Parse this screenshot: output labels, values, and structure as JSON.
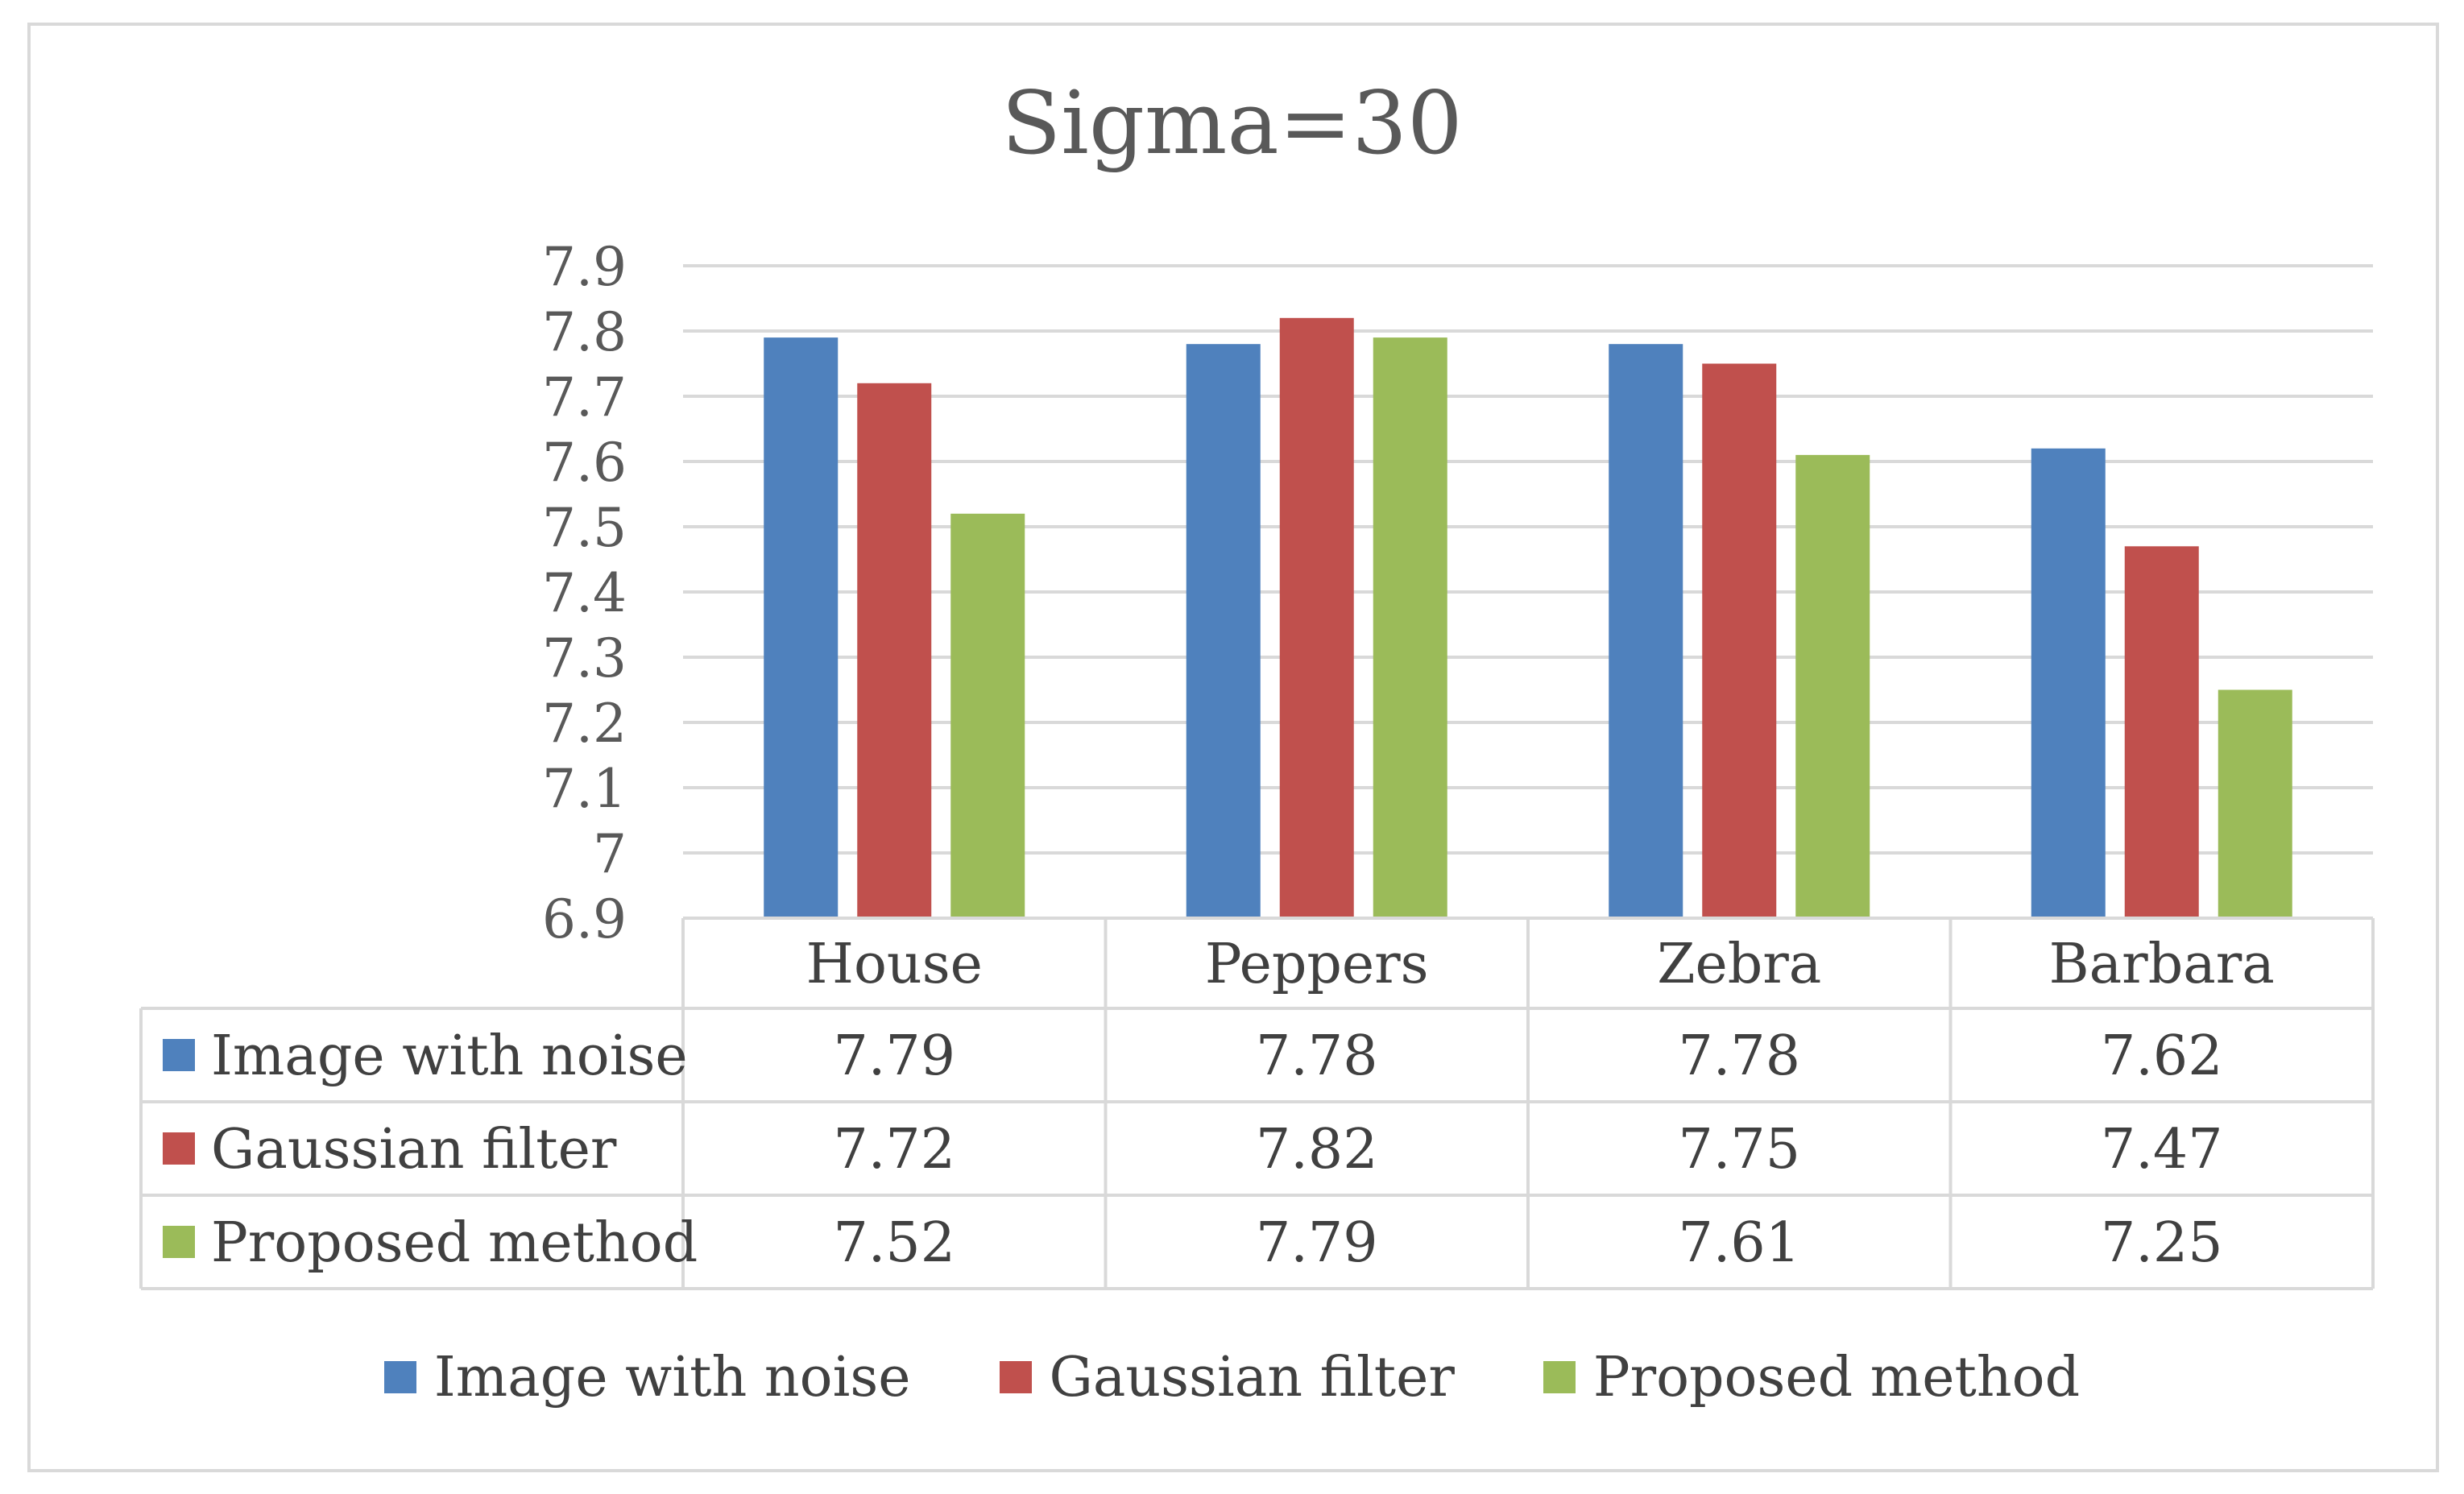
{
  "chart_data": {
    "type": "bar",
    "title": "Sigma=30",
    "categories": [
      "House",
      "Peppers",
      "Zebra",
      "Barbara"
    ],
    "series": [
      {
        "name": "Image with noise",
        "color": "#4f81bd",
        "values": [
          7.79,
          7.78,
          7.78,
          7.62
        ],
        "labels": [
          "7.79",
          "7.78",
          "7.78",
          "7.62"
        ]
      },
      {
        "name": "Gaussian filter",
        "color": "#c0504d",
        "values": [
          7.72,
          7.82,
          7.75,
          7.47
        ],
        "labels": [
          "7.72",
          "7.82",
          "7.75",
          "7.47"
        ]
      },
      {
        "name": "Proposed method",
        "color": "#9bbb59",
        "values": [
          7.52,
          7.79,
          7.61,
          7.25
        ],
        "labels": [
          "7.52",
          "7.79",
          "7.61",
          "7.25"
        ]
      }
    ],
    "ylim": [
      6.9,
      7.9
    ],
    "ytick_labels": [
      "6.9",
      "7",
      "7.1",
      "7.2",
      "7.3",
      "7.4",
      "7.5",
      "7.6",
      "7.7",
      "7.8",
      "7.9"
    ],
    "grid": true,
    "legend_position": "bottom",
    "data_table": true
  }
}
